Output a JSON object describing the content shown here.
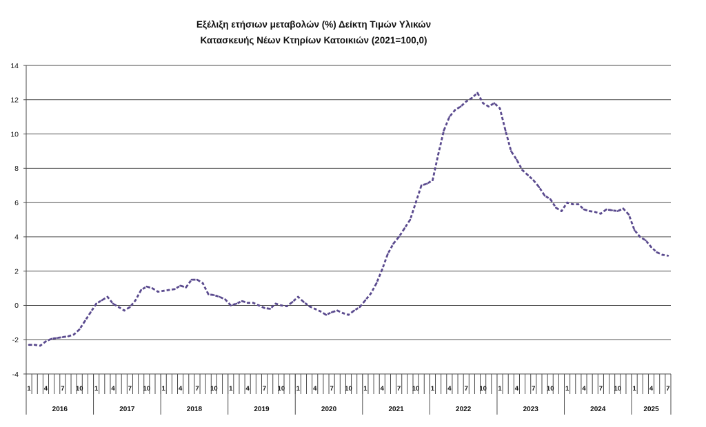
{
  "chart_data": {
    "type": "line",
    "title_lines": [
      "Εξέλιξη ετήσιων μεταβολών (%) Δείκτη Τιμών Υλικών",
      "Κατασκευής Νέων Κτηρίων Κατοικιών (2021=100,0)"
    ],
    "xlabel": "",
    "ylabel": "",
    "ylim": [
      -4,
      14
    ],
    "yticks": [
      "14",
      "12",
      "10",
      "8",
      "6",
      "4",
      "2",
      "0",
      "-2",
      "-4"
    ],
    "grid": "horizontal",
    "month_tick_labels": [
      "1",
      "4",
      "7",
      "10"
    ],
    "line_color": "#5a4a8e",
    "line_style": "dashed",
    "years": [
      {
        "year": "2016",
        "values": [
          -2.3,
          -2.3,
          -2.35,
          -2.1,
          -1.95,
          -1.9,
          -1.85,
          -1.8,
          -1.7,
          -1.4,
          -0.9,
          -0.4
        ]
      },
      {
        "year": "2017",
        "values": [
          0.1,
          0.3,
          0.5,
          0.1,
          -0.1,
          -0.3,
          -0.1,
          0.3,
          0.9,
          1.1,
          1.0,
          0.8
        ]
      },
      {
        "year": "2018",
        "values": [
          0.85,
          0.9,
          0.95,
          1.15,
          1.05,
          1.5,
          1.5,
          1.3,
          0.65,
          0.6,
          0.5,
          0.35
        ]
      },
      {
        "year": "2019",
        "values": [
          0.0,
          0.1,
          0.25,
          0.15,
          0.15,
          0.0,
          -0.15,
          -0.2,
          0.1,
          0.0,
          -0.05,
          0.2
        ]
      },
      {
        "year": "2020",
        "values": [
          0.5,
          0.2,
          -0.05,
          -0.2,
          -0.35,
          -0.55,
          -0.4,
          -0.3,
          -0.45,
          -0.55,
          -0.3,
          -0.1
        ]
      },
      {
        "year": "2021",
        "values": [
          0.3,
          0.7,
          1.3,
          2.1,
          3.0,
          3.6,
          4.0,
          4.5,
          5.0,
          6.0,
          7.0,
          7.1
        ]
      },
      {
        "year": "2022",
        "values": [
          7.3,
          8.8,
          10.2,
          11.0,
          11.4,
          11.6,
          11.9,
          12.1,
          12.4,
          11.8,
          11.6,
          11.8
        ]
      },
      {
        "year": "2023",
        "values": [
          11.5,
          10.2,
          9.0,
          8.5,
          7.9,
          7.6,
          7.3,
          6.9,
          6.4,
          6.2,
          5.7,
          5.5
        ]
      },
      {
        "year": "2024",
        "values": [
          6.0,
          5.9,
          5.9,
          5.6,
          5.5,
          5.45,
          5.35,
          5.6,
          5.55,
          5.5,
          5.65,
          5.3
        ]
      },
      {
        "year": "2025",
        "values": [
          4.4,
          4.0,
          3.8,
          3.4,
          3.1,
          2.95,
          2.9
        ]
      }
    ]
  }
}
